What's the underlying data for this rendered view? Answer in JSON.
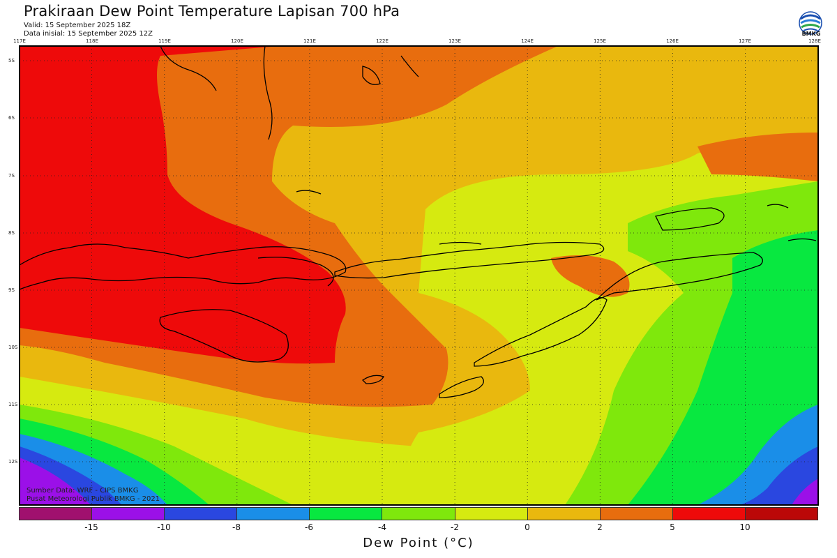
{
  "header": {
    "title": "Prakiraan Dew Point Temperature Lapisan 700 hPa",
    "valid": "Valid: 15 September 2025 18Z",
    "init": "Data inisial: 15 September 2025 12Z"
  },
  "logo": {
    "text": "BMKG",
    "icon": "bmkg-logo"
  },
  "map": {
    "lon_labels": [
      "117E",
      "118E",
      "119E",
      "120E",
      "121E",
      "122E",
      "123E",
      "124E",
      "125E",
      "126E",
      "127E",
      "128E"
    ],
    "lat_labels": [
      "5S",
      "6S",
      "7S",
      "8S",
      "9S",
      "10S",
      "11S",
      "12S"
    ],
    "grid": "dotted"
  },
  "source": {
    "line1": "Sumber Data: WRF - CIPS BMKG",
    "line2": "Pusat Meteorologi Publik BMKG - 2021"
  },
  "colorbar": {
    "title": "Dew Point (°C)",
    "ticks": [
      "-15",
      "-10",
      "-8",
      "-6",
      "-4",
      "-2",
      "0",
      "2",
      "5",
      "10"
    ],
    "colors": [
      "#a0106e",
      "#9b10e8",
      "#2a47e0",
      "#1a8ee8",
      "#08e840",
      "#7fe80c",
      "#d6ea10",
      "#e9b80e",
      "#e86d0e",
      "#ee0a0a",
      "#bb0808"
    ],
    "colors_named": {
      "lt-15": "#a0106e",
      "-15_-10": "#9b10e8",
      "-10_-8": "#2a47e0",
      "-8_-6": "#1a8ee8",
      "-6_-4": "#08e840",
      "-4_-2": "#7fe80c",
      "-2_0": "#d6ea10",
      "0_2": "#e9b80e",
      "2_5": "#e86d0e",
      "5_10": "#ee0a0a",
      "gt10": "#bb0808"
    }
  }
}
